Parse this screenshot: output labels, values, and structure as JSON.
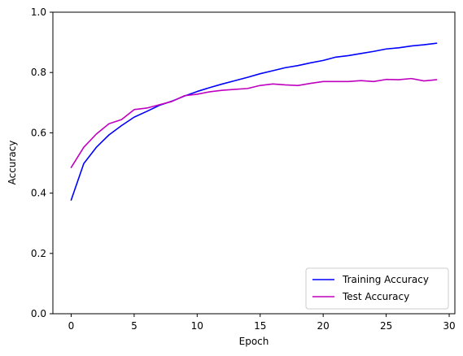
{
  "chart_data": {
    "type": "line",
    "title": "",
    "xlabel": "Epoch",
    "ylabel": "Accuracy",
    "xlim": [
      -1.45,
      30.45
    ],
    "ylim": [
      0,
      1
    ],
    "xticks": [
      0,
      5,
      10,
      15,
      20,
      25,
      30
    ],
    "yticks": [
      0.0,
      0.2,
      0.4,
      0.6,
      0.8,
      1.0
    ],
    "xtick_labels": [
      "0",
      "5",
      "10",
      "15",
      "20",
      "25",
      "30"
    ],
    "ytick_labels": [
      "0.0",
      "0.2",
      "0.4",
      "0.6",
      "0.8",
      "1.0"
    ],
    "grid": false,
    "legend_position": "lower right",
    "x": [
      0,
      1,
      2,
      3,
      4,
      5,
      6,
      7,
      8,
      9,
      10,
      11,
      12,
      13,
      14,
      15,
      16,
      17,
      18,
      19,
      20,
      21,
      22,
      23,
      24,
      25,
      26,
      27,
      28,
      29
    ],
    "series": [
      {
        "name": "Training Accuracy",
        "color": "#0000ff",
        "values": [
          0.377,
          0.498,
          0.552,
          0.593,
          0.624,
          0.652,
          0.671,
          0.691,
          0.705,
          0.722,
          0.737,
          0.75,
          0.762,
          0.773,
          0.784,
          0.796,
          0.806,
          0.816,
          0.823,
          0.832,
          0.84,
          0.851,
          0.856,
          0.863,
          0.87,
          0.878,
          0.882,
          0.888,
          0.892,
          0.897
        ]
      },
      {
        "name": "Test Accuracy",
        "color": "#bf00bf",
        "values": [
          0.485,
          0.552,
          0.596,
          0.63,
          0.644,
          0.677,
          0.682,
          0.693,
          0.704,
          0.723,
          0.728,
          0.736,
          0.741,
          0.744,
          0.747,
          0.757,
          0.762,
          0.759,
          0.757,
          0.764,
          0.77,
          0.77,
          0.77,
          0.773,
          0.77,
          0.777,
          0.776,
          0.78,
          0.772,
          0.776
        ]
      }
    ]
  }
}
